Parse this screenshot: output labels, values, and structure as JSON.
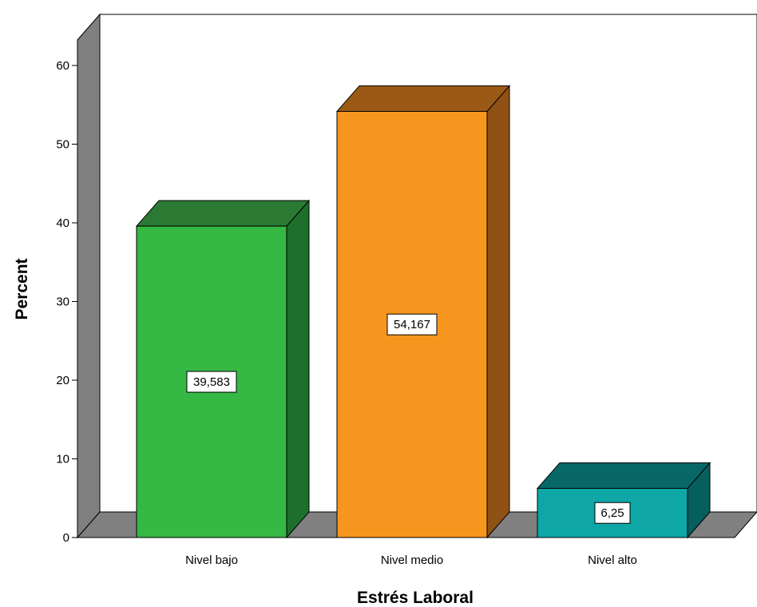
{
  "chart_data": {
    "type": "bar",
    "categories": [
      "Nivel bajo",
      "Nivel medio",
      "Nivel alto"
    ],
    "values": [
      39.583,
      54.167,
      6.25
    ],
    "data_labels": [
      "39,583",
      "54,167",
      "6,25"
    ],
    "title": "",
    "xlabel": "Estrés Laboral",
    "ylabel": "Percent",
    "ylim": [
      0,
      60
    ],
    "yticks": [
      "0",
      "10",
      "20",
      "30",
      "40",
      "50",
      "60"
    ],
    "style": "3d",
    "grid": false,
    "colors": {
      "bars": [
        "#35b844",
        "#f7961e",
        "#0fa6a6"
      ],
      "bar_tops": [
        "#2a7a34",
        "#9a5a15",
        "#086868"
      ],
      "bar_sides": [
        "#1e6e2c",
        "#8f5214",
        "#065e5e"
      ],
      "walls": "#808080"
    }
  }
}
